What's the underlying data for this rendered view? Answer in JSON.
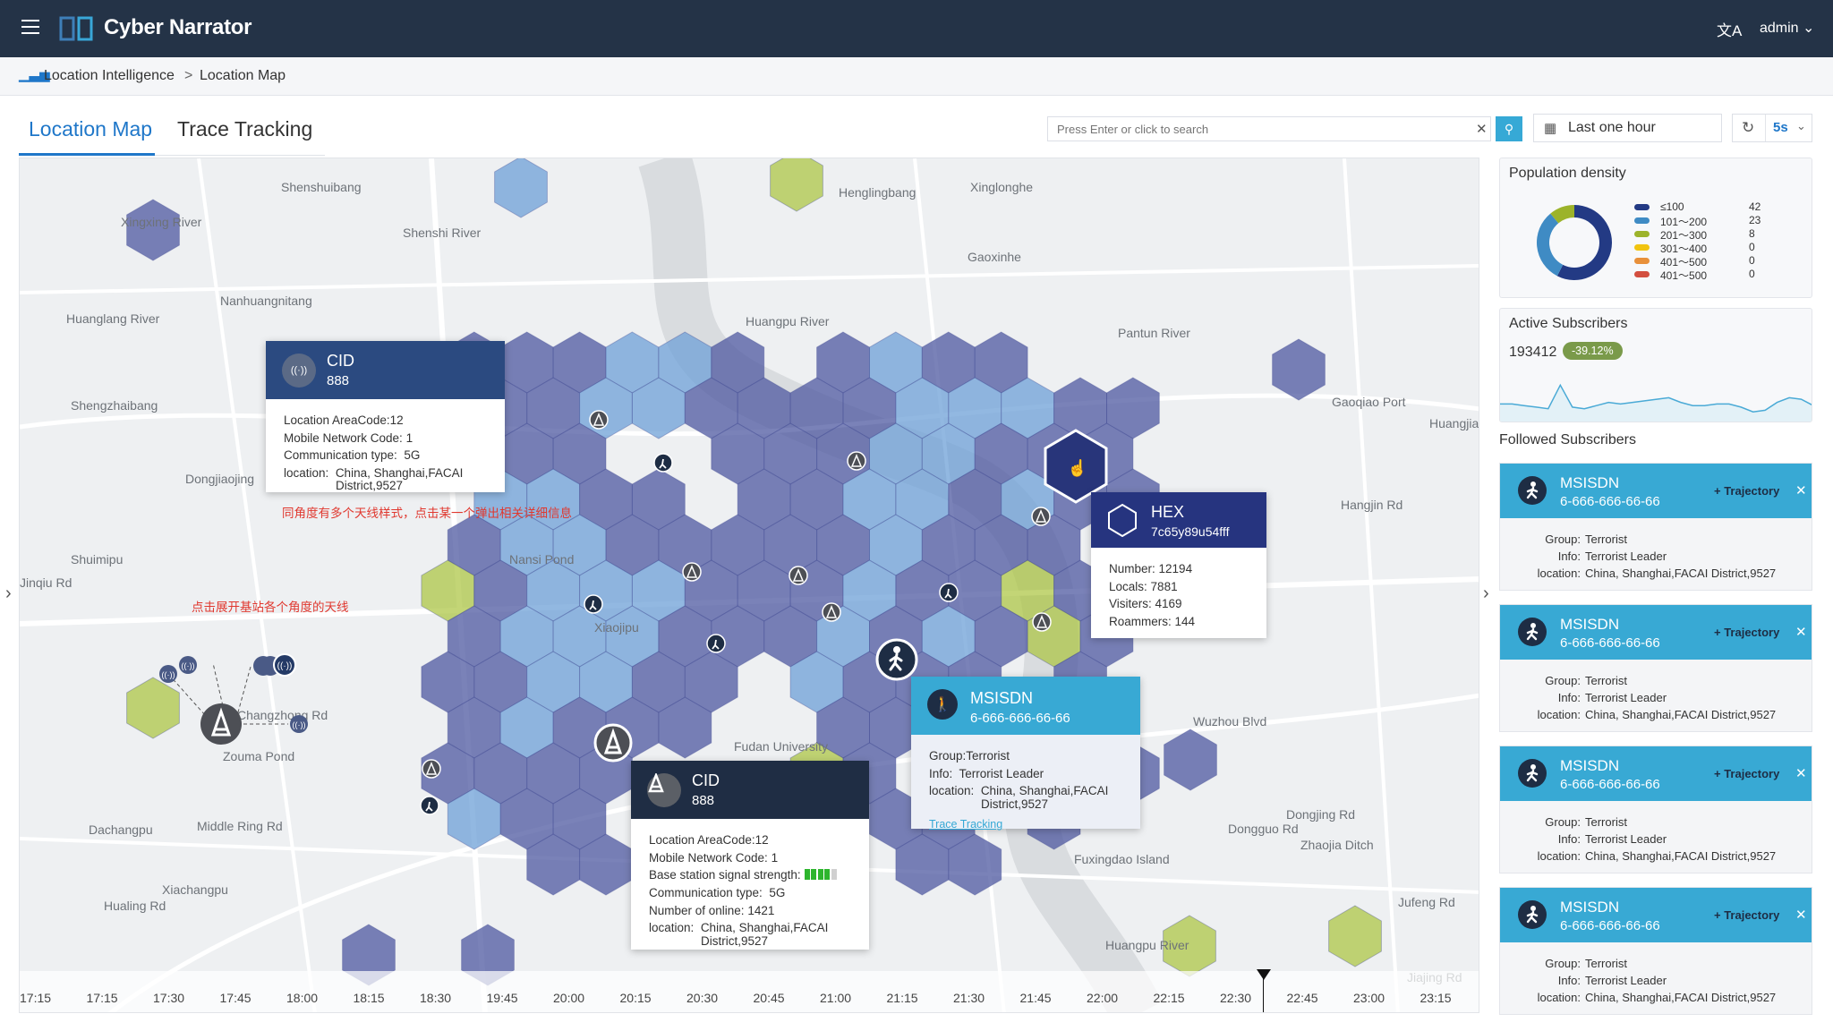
{
  "header": {
    "title": "Cyber Narrator",
    "user": "admin",
    "icons": [
      "menu-icon",
      "book-logo",
      "translate-icon",
      "chevron-down-icon"
    ]
  },
  "breadcrumb": {
    "items": [
      "Location Intelligence",
      "Location Map"
    ],
    "separator": ">"
  },
  "tabs": [
    {
      "label": "Location Map",
      "active": true
    },
    {
      "label": "Trace Tracking",
      "active": false
    }
  ],
  "toolbar": {
    "search_placeholder": "Press Enter or click to search",
    "time_range": "Last one hour",
    "refresh_interval": "5s"
  },
  "map": {
    "labels": [
      "Shenshuibang",
      "Xingxing River",
      "Henglingbang",
      "Xinglonghe",
      "Shenshi River",
      "Gaoxinhe",
      "Nanhuangnitang",
      "Huanglang River",
      "Huangpu River",
      "Pantun River",
      "Shengzhaibang",
      "Gaoqiao Port",
      "Huangjia",
      "Dongjiaojing",
      "Hangjin Rd",
      "Nansi Pond",
      "Shuimipu",
      "Xiaojipu",
      "Changzhong Rd",
      "Zouma Pond",
      "Fudan University",
      "Zhaojia Ditch",
      "Dongjing Rd",
      "Dongguo Rd",
      "Dachangpu",
      "Middle Ring Rd",
      "Xiachangpu",
      "Hualing Rd",
      "Fuxingdao Island",
      "Huangpu River",
      "Jufeng Rd",
      "Jiajing Rd",
      "Wuzhou Blvd",
      "Jinqiu Rd"
    ],
    "annotations": [
      "同角度有多个天线样式，点击某一个弹出相关详细信息",
      "点击展开基站各个角度的天线"
    ],
    "colors": {
      "dense": "#4e58a0",
      "medium": "#6ea0d7",
      "sparse": "#aac33c"
    },
    "popup_cid_1": {
      "title": "CID",
      "id": "888",
      "rows": [
        [
          "Location AreaCode:",
          "12"
        ],
        [
          "Mobile Network Code:",
          "1"
        ],
        [
          "Communication type:",
          "5G"
        ],
        [
          "location:",
          "China, Shanghai,FACAI"
        ]
      ],
      "location_cont": "District,9527"
    },
    "popup_hex": {
      "title": "HEX",
      "id": "7c65y89u54fff",
      "rows": [
        [
          "Number:",
          "12194"
        ],
        [
          "Locals:",
          "7881"
        ],
        [
          "Visiters:",
          "4169"
        ],
        [
          "Roammers:",
          "144"
        ]
      ]
    },
    "popup_msisdn": {
      "title": "MSISDN",
      "id": "6-666-666-66-66",
      "rows": [
        [
          "Group:",
          "Terrorist"
        ],
        [
          "Info:",
          "Terrorist Leader"
        ],
        [
          "location:",
          "China, Shanghai,FACAI"
        ]
      ],
      "location_cont": "District,9527",
      "link": "Trace Tracking"
    },
    "popup_cid_2": {
      "title": "CID",
      "id": "888",
      "rows": [
        [
          "Location AreaCode:",
          "12"
        ],
        [
          "Mobile Network Code:",
          "1"
        ],
        [
          "Base station signal strength:",
          ""
        ],
        [
          "Communication type:",
          "5G"
        ],
        [
          "Number of online:",
          "1421"
        ],
        [
          "location:",
          "China, Shanghai,FACAI"
        ]
      ],
      "location_cont": "District,9527",
      "signal_level": 4,
      "signal_max": 5
    },
    "timeline": [
      "17:15",
      "17:15",
      "17:30",
      "17:45",
      "18:00",
      "18:15",
      "18:30",
      "19:45",
      "20:00",
      "20:15",
      "20:30",
      "20:45",
      "21:00",
      "21:15",
      "21:30",
      "21:45",
      "22:00",
      "22:15",
      "22:30",
      "22:45",
      "23:00",
      "23:15"
    ],
    "timeline_current": "22:30"
  },
  "population_density": {
    "title": "Population density",
    "chart_data": {
      "type": "pie",
      "donut": true,
      "categories": [
        "≤100",
        "101～200",
        "201～300",
        "301～400",
        "401～500",
        "401～500"
      ],
      "values": [
        42,
        23,
        8,
        0,
        0,
        0
      ],
      "colors": [
        "#233a84",
        "#3f8bc4",
        "#9cb32a",
        "#f1c40f",
        "#e8903a",
        "#d34f3f"
      ]
    }
  },
  "active_subscribers": {
    "title": "Active Subscribers",
    "value": "193412",
    "change": "-39.12%",
    "chart_data": {
      "type": "area",
      "values": [
        40,
        40,
        39,
        38,
        37,
        52,
        38,
        37,
        39,
        41,
        40,
        41,
        42,
        43,
        44,
        41,
        39,
        39,
        40,
        40,
        38,
        35,
        36,
        41,
        44,
        43,
        39
      ]
    }
  },
  "followed": {
    "title": "Followed Subscribers",
    "items": [
      {
        "title": "MSISDN",
        "id": "6-666-666-66-66",
        "action": "+ Trajectory",
        "group_k": "Group:",
        "group": "Terrorist",
        "info_k": "Info:",
        "info": "Terrorist Leader",
        "loc_k": "location:",
        "loc": "China, Shanghai,FACAI District,9527"
      },
      {
        "title": "MSISDN",
        "id": "6-666-666-66-66",
        "action": "+ Trajectory",
        "group_k": "Group:",
        "group": "Terrorist",
        "info_k": "Info:",
        "info": "Terrorist Leader",
        "loc_k": "location:",
        "loc": "China, Shanghai,FACAI District,9527"
      },
      {
        "title": "MSISDN",
        "id": "6-666-666-66-66",
        "action": "+ Trajectory",
        "group_k": "Group:",
        "group": "Terrorist",
        "info_k": "Info:",
        "info": "Terrorist Leader",
        "loc_k": "location:",
        "loc": "China, Shanghai,FACAI District,9527"
      },
      {
        "title": "MSISDN",
        "id": "6-666-666-66-66",
        "action": "+ Trajectory",
        "group_k": "Group:",
        "group": "Terrorist",
        "info_k": "Info:",
        "info": "Terrorist Leader",
        "loc_k": "location:",
        "loc": "China, Shanghai,FACAI District,9527"
      }
    ]
  }
}
